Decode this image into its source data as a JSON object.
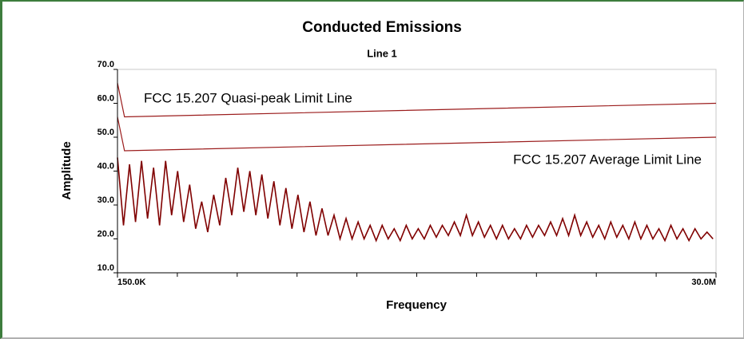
{
  "chart_data": {
    "type": "line",
    "title": "Conducted Emissions",
    "subtitle": "Line 1",
    "x_label": "Frequency",
    "y_label": "Amplitude",
    "xlim": [
      0.15,
      30
    ],
    "ylim": [
      10,
      70
    ],
    "xticks": [
      {
        "value": 0.15,
        "label": "150.0K"
      },
      {
        "value": 30,
        "label": "30.0M"
      }
    ],
    "xminor_ticks": [
      3.135,
      6.12,
      9.105,
      12.09,
      15.075,
      18.06,
      21.045,
      24.03,
      27.015
    ],
    "yticks": [
      {
        "value": 10,
        "label": "10.0"
      },
      {
        "value": 20,
        "label": "20.0"
      },
      {
        "value": 30,
        "label": "30.0"
      },
      {
        "value": 40,
        "label": "40.0"
      },
      {
        "value": 50,
        "label": "50.0"
      },
      {
        "value": 60,
        "label": "60.0"
      },
      {
        "value": 70,
        "label": "70.0"
      }
    ],
    "grid": false,
    "series": [
      {
        "name": "FCC 15.207 Quasi-peak Limit Line",
        "color": "#9b1c1c",
        "x": [
          0.15,
          0.5,
          30
        ],
        "values": [
          66,
          56,
          60
        ]
      },
      {
        "name": "FCC 15.207 Average Limit Line",
        "color": "#9b1c1c",
        "x": [
          0.15,
          0.5,
          30
        ],
        "values": [
          56,
          46,
          50
        ]
      },
      {
        "color": "#800000",
        "x": [
          0.15,
          0.45,
          0.75,
          1.05,
          1.35,
          1.65,
          1.95,
          2.25,
          2.55,
          2.85,
          3.15,
          3.45,
          3.75,
          4.05,
          4.35,
          4.65,
          4.95,
          5.25,
          5.55,
          5.85,
          6.15,
          6.45,
          6.75,
          7.05,
          7.35,
          7.65,
          7.95,
          8.25,
          8.55,
          8.85,
          9.15,
          9.45,
          9.75,
          10.05,
          10.35,
          10.65,
          10.95,
          11.25,
          11.55,
          11.85,
          12.15,
          12.45,
          12.75,
          13.05,
          13.35,
          13.65,
          13.95,
          14.25,
          14.55,
          14.85,
          15.15,
          15.45,
          15.75,
          16.05,
          16.35,
          16.65,
          16.95,
          17.25,
          17.55,
          17.85,
          18.15,
          18.45,
          18.75,
          19.05,
          19.35,
          19.65,
          19.95,
          20.25,
          20.55,
          20.85,
          21.15,
          21.45,
          21.75,
          22.05,
          22.35,
          22.65,
          22.95,
          23.25,
          23.55,
          23.85,
          24.15,
          24.45,
          24.75,
          25.05,
          25.35,
          25.65,
          25.95,
          26.25,
          26.55,
          26.85,
          27.15,
          27.45,
          27.75,
          28.05,
          28.35,
          28.65,
          28.95,
          29.25,
          29.55,
          29.85
        ],
        "values": [
          44,
          24,
          42,
          25,
          43,
          26,
          41,
          24,
          43,
          27,
          40,
          25,
          36,
          23,
          31,
          22,
          33,
          24,
          38,
          27,
          41,
          28,
          40,
          27,
          39,
          26,
          37,
          24,
          35,
          23,
          33,
          22,
          31,
          21,
          29,
          21,
          27,
          20,
          26,
          20,
          25,
          20,
          24,
          19.5,
          24,
          20,
          23,
          19.5,
          24,
          20,
          23,
          20,
          24,
          20.5,
          24,
          21,
          25,
          21,
          27,
          21,
          25,
          20.5,
          24,
          20,
          24,
          20,
          23,
          20,
          24,
          20.5,
          24,
          21,
          25,
          21,
          26,
          21,
          27,
          21,
          25,
          20.5,
          24,
          20,
          25,
          20.5,
          24,
          20,
          25,
          20,
          24,
          20,
          23,
          19.5,
          24,
          20,
          23,
          19.5,
          23,
          20,
          22,
          20
        ]
      }
    ]
  }
}
